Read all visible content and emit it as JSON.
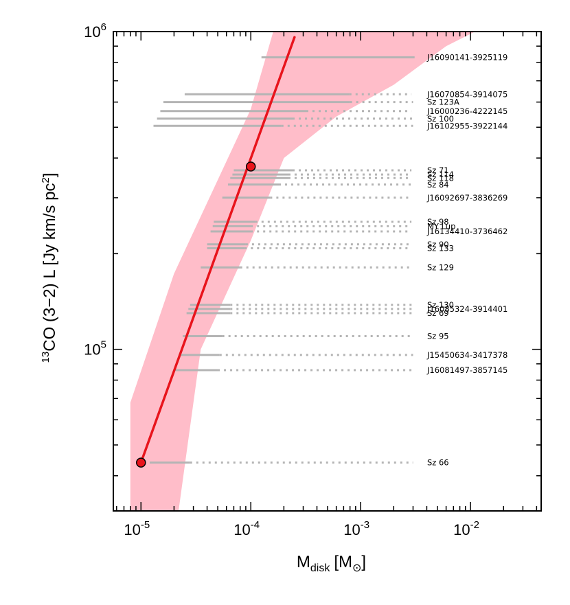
{
  "chart_data": {
    "type": "line",
    "xscale": "log",
    "yscale": "log",
    "xlim": [
      5.6e-06,
      0.044
    ],
    "ylim": [
      31000,
      1000000
    ],
    "xticks": [
      {
        "value": 1e-05,
        "base": "10",
        "exp": "-5"
      },
      {
        "value": 0.0001,
        "base": "10",
        "exp": "-4"
      },
      {
        "value": 0.001,
        "base": "10",
        "exp": "-3"
      },
      {
        "value": 0.01,
        "base": "10",
        "exp": "-2"
      }
    ],
    "yticks": [
      {
        "value": 100000,
        "base": "10",
        "exp": "5"
      },
      {
        "value": 1000000,
        "base": "10",
        "exp": "6"
      }
    ],
    "xlabel": {
      "main": "M",
      "sub": "disk",
      "unit": "[M",
      "unit_sub": "⊙",
      "close": "]"
    },
    "ylabel": {
      "sup": "13",
      "main": "CO (3−2) L [Jy km/s pc",
      "sup2": "2",
      "close": "]"
    },
    "colors": {
      "band": "#ffbdc9",
      "line": "#e8141c",
      "marker": "#e8141c",
      "segment": "#b4b4b4"
    },
    "model_band": [
      [
        8e-06,
        68000
      ],
      [
        2e-05,
        173000
      ],
      [
        0.0001,
        570000
      ],
      [
        0.00016,
        1000000
      ],
      [
        0.011,
        1000000
      ],
      [
        0.006,
        900000
      ],
      [
        0.002,
        680000
      ],
      [
        0.0006,
        540000
      ],
      [
        0.0002,
        400000
      ],
      [
        0.0001,
        220000
      ],
      [
        3.5e-05,
        100000
      ],
      [
        2.2e-05,
        31000
      ],
      [
        8e-06,
        31000
      ]
    ],
    "model_line": {
      "name": "model",
      "x": [
        1e-05,
        0.00025
      ],
      "y": [
        44000,
        960000
      ]
    },
    "markers": [
      {
        "x": 1e-05,
        "y": 44000
      },
      {
        "x": 0.0001,
        "y": 376000
      }
    ],
    "sources": [
      {
        "name": "J16090141-3925119",
        "y": 830000,
        "solid": [
          0.000125,
          0.0031
        ],
        "dotted": null
      },
      {
        "name": "J16070854-3914075",
        "y": 635000,
        "solid": [
          2.5e-05,
          0.00079
        ],
        "dotted": [
          0.00079,
          0.0029
        ]
      },
      {
        "name": "Sz 123A",
        "y": 600000,
        "solid": [
          1.6e-05,
          0.0008
        ],
        "dotted": [
          0.0008,
          0.003
        ]
      },
      {
        "name": "J16000236-4222145",
        "y": 562000,
        "solid": [
          1.5e-05,
          0.00032
        ],
        "dotted": [
          0.00032,
          0.0029
        ]
      },
      {
        "name": "Sz 100",
        "y": 532000,
        "solid": [
          1.4e-05,
          0.00024
        ],
        "dotted": [
          0.00024,
          0.003
        ]
      },
      {
        "name": "J16102955-3922144",
        "y": 505000,
        "solid": [
          1.3e-05,
          0.00019
        ],
        "dotted": [
          0.00019,
          0.003
        ]
      },
      {
        "name": "Sz 71",
        "y": 366000,
        "solid": [
          7e-05,
          0.00024
        ],
        "dotted": [
          0.00024,
          0.0029
        ]
      },
      {
        "name": "Sz 114",
        "y": 355000,
        "solid": [
          6.8e-05,
          0.00022
        ],
        "dotted": [
          0.00022,
          0.0029
        ]
      },
      {
        "name": "Sz 118",
        "y": 346000,
        "solid": [
          6.5e-05,
          0.00022
        ],
        "dotted": [
          0.00022,
          0.0029
        ]
      },
      {
        "name": "Sz 84",
        "y": 330000,
        "solid": [
          6.2e-05,
          0.00018
        ],
        "dotted": [
          0.00018,
          0.0029
        ]
      },
      {
        "name": "J16092697-3836269",
        "y": 300000,
        "solid": [
          5.5e-05,
          0.00015
        ],
        "dotted": [
          0.00015,
          0.0029
        ]
      },
      {
        "name": "Sz 98",
        "y": 252000,
        "solid": [
          4.6e-05,
          0.00011
        ],
        "dotted": [
          0.00011,
          0.0029
        ]
      },
      {
        "name": "MY Lup",
        "y": 244000,
        "solid": [
          4.5e-05,
          0.0001
        ],
        "dotted": [
          0.0001,
          0.0029
        ]
      },
      {
        "name": "J16134410-3736462",
        "y": 235000,
        "solid": [
          4.3e-05,
          0.0001
        ],
        "dotted": [
          0.0001,
          0.0029
        ]
      },
      {
        "name": "Sz 90",
        "y": 214000,
        "solid": [
          4e-05,
          9e-05
        ],
        "dotted": [
          9e-05,
          0.0029
        ]
      },
      {
        "name": "Sz 133",
        "y": 208000,
        "solid": [
          4e-05,
          8.8e-05
        ],
        "dotted": [
          8.8e-05,
          0.0029
        ]
      },
      {
        "name": "Sz 129",
        "y": 181000,
        "solid": [
          3.5e-05,
          8e-05
        ],
        "dotted": [
          8e-05,
          0.003
        ]
      },
      {
        "name": "Sz 130",
        "y": 138000,
        "solid": [
          2.8e-05,
          6.5e-05
        ],
        "dotted": [
          6.5e-05,
          0.003
        ]
      },
      {
        "name": "J16085324-3914401",
        "y": 134000,
        "solid": [
          2.7e-05,
          6.5e-05
        ],
        "dotted": [
          6.5e-05,
          0.003
        ]
      },
      {
        "name": "Sz 69",
        "y": 130000,
        "solid": [
          2.6e-05,
          6.5e-05
        ],
        "dotted": [
          6.5e-05,
          0.003
        ]
      },
      {
        "name": "Sz 95",
        "y": 110000,
        "solid": [
          2.4e-05,
          5.5e-05
        ],
        "dotted": [
          5.5e-05,
          0.0029
        ]
      },
      {
        "name": "J15450634-3417378",
        "y": 96000,
        "solid": [
          2.2e-05,
          5.2e-05
        ],
        "dotted": [
          5.2e-05,
          0.003
        ]
      },
      {
        "name": "J16081497-3857145",
        "y": 86000,
        "solid": [
          2e-05,
          5e-05
        ],
        "dotted": [
          5e-05,
          0.003
        ]
      },
      {
        "name": "Sz 66",
        "y": 44000,
        "solid": [
          1.2e-05,
          2.8e-05
        ],
        "dotted": [
          2.8e-05,
          0.003
        ]
      }
    ]
  }
}
